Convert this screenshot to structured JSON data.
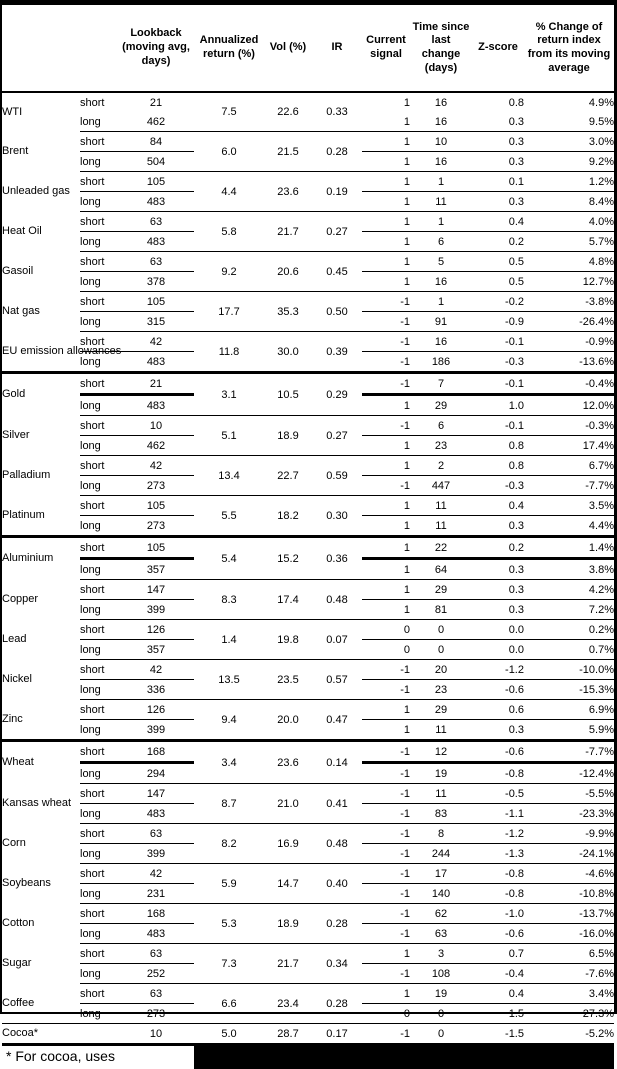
{
  "table": {
    "columns": [
      {
        "key": "name",
        "label": ""
      },
      {
        "key": "side",
        "label": ""
      },
      {
        "key": "lookback",
        "label": "Lookback (moving avg, days)"
      },
      {
        "key": "ann",
        "label": "Annualized return (%)"
      },
      {
        "key": "vol",
        "label": "Vol (%)"
      },
      {
        "key": "ir",
        "label": "IR"
      },
      {
        "key": "signal",
        "label": "Current signal"
      },
      {
        "key": "time",
        "label": "Time since last change (days)"
      },
      {
        "key": "z",
        "label": "Z-score"
      },
      {
        "key": "pct",
        "label": "% Change of return index from its moving average"
      }
    ],
    "groups": [
      {
        "name": "WTI",
        "annualized": "7.5",
        "vol": "22.6",
        "ir": "0.33",
        "rows": [
          {
            "side": "short",
            "lookback": "21",
            "signal": "1",
            "time": "16",
            "z": "0.8",
            "pct": "4.9%"
          },
          {
            "side": "long",
            "lookback": "462",
            "signal": "1",
            "time": "16",
            "z": "0.3",
            "pct": "9.5%"
          }
        ]
      },
      {
        "name": "Brent",
        "annualized": "6.0",
        "vol": "21.5",
        "ir": "0.28",
        "rows": [
          {
            "side": "short",
            "lookback": "84",
            "signal": "1",
            "time": "10",
            "z": "0.3",
            "pct": "3.0%"
          },
          {
            "side": "long",
            "lookback": "504",
            "signal": "1",
            "time": "16",
            "z": "0.3",
            "pct": "9.2%"
          }
        ]
      },
      {
        "name": "Unleaded gas",
        "annualized": "4.4",
        "vol": "23.6",
        "ir": "0.19",
        "rows": [
          {
            "side": "short",
            "lookback": "105",
            "signal": "1",
            "time": "1",
            "z": "0.1",
            "pct": "1.2%"
          },
          {
            "side": "long",
            "lookback": "483",
            "signal": "1",
            "time": "11",
            "z": "0.3",
            "pct": "8.4%"
          }
        ]
      },
      {
        "name": "Heat Oil",
        "annualized": "5.8",
        "vol": "21.7",
        "ir": "0.27",
        "rows": [
          {
            "side": "short",
            "lookback": "63",
            "signal": "1",
            "time": "1",
            "z": "0.4",
            "pct": "4.0%"
          },
          {
            "side": "long",
            "lookback": "483",
            "signal": "1",
            "time": "6",
            "z": "0.2",
            "pct": "5.7%"
          }
        ]
      },
      {
        "name": "Gasoil",
        "annualized": "9.2",
        "vol": "20.6",
        "ir": "0.45",
        "rows": [
          {
            "side": "short",
            "lookback": "63",
            "signal": "1",
            "time": "5",
            "z": "0.5",
            "pct": "4.8%"
          },
          {
            "side": "long",
            "lookback": "378",
            "signal": "1",
            "time": "16",
            "z": "0.5",
            "pct": "12.7%"
          }
        ]
      },
      {
        "name": "Nat gas",
        "annualized": "17.7",
        "vol": "35.3",
        "ir": "0.50",
        "rows": [
          {
            "side": "short",
            "lookback": "105",
            "signal": "-1",
            "time": "1",
            "z": "-0.2",
            "pct": "-3.8%"
          },
          {
            "side": "long",
            "lookback": "315",
            "signal": "-1",
            "time": "91",
            "z": "-0.9",
            "pct": "-26.4%"
          }
        ]
      },
      {
        "name": "EU emission allowances",
        "annualized": "11.8",
        "vol": "30.0",
        "ir": "0.39",
        "rows": [
          {
            "side": "short",
            "lookback": "42",
            "signal": "-1",
            "time": "16",
            "z": "-0.1",
            "pct": "-0.9%"
          },
          {
            "side": "long",
            "lookback": "483",
            "signal": "-1",
            "time": "186",
            "z": "-0.3",
            "pct": "-13.6%"
          }
        ]
      },
      {
        "name": "Gold",
        "section_start": true,
        "annualized": "3.1",
        "vol": "10.5",
        "ir": "0.29",
        "rows": [
          {
            "side": "short",
            "lookback": "21",
            "signal": "-1",
            "time": "7",
            "z": "-0.1",
            "pct": "-0.4%"
          },
          {
            "side": "long",
            "lookback": "483",
            "signal": "1",
            "time": "29",
            "z": "1.0",
            "pct": "12.0%"
          }
        ]
      },
      {
        "name": "Silver",
        "annualized": "5.1",
        "vol": "18.9",
        "ir": "0.27",
        "rows": [
          {
            "side": "short",
            "lookback": "10",
            "signal": "-1",
            "time": "6",
            "z": "-0.1",
            "pct": "-0.3%"
          },
          {
            "side": "long",
            "lookback": "462",
            "signal": "1",
            "time": "23",
            "z": "0.8",
            "pct": "17.4%"
          }
        ]
      },
      {
        "name": "Palladium",
        "annualized": "13.4",
        "vol": "22.7",
        "ir": "0.59",
        "rows": [
          {
            "side": "short",
            "lookback": "42",
            "signal": "1",
            "time": "2",
            "z": "0.8",
            "pct": "6.7%"
          },
          {
            "side": "long",
            "lookback": "273",
            "signal": "-1",
            "time": "447",
            "z": "-0.3",
            "pct": "-7.7%"
          }
        ]
      },
      {
        "name": "Platinum",
        "annualized": "5.5",
        "vol": "18.2",
        "ir": "0.30",
        "rows": [
          {
            "side": "short",
            "lookback": "105",
            "signal": "1",
            "time": "11",
            "z": "0.4",
            "pct": "3.5%"
          },
          {
            "side": "long",
            "lookback": "273",
            "signal": "1",
            "time": "11",
            "z": "0.3",
            "pct": "4.4%"
          }
        ]
      },
      {
        "name": "Aluminium",
        "section_start": true,
        "annualized": "5.4",
        "vol": "15.2",
        "ir": "0.36",
        "rows": [
          {
            "side": "short",
            "lookback": "105",
            "signal": "1",
            "time": "22",
            "z": "0.2",
            "pct": "1.4%"
          },
          {
            "side": "long",
            "lookback": "357",
            "signal": "1",
            "time": "64",
            "z": "0.3",
            "pct": "3.8%"
          }
        ]
      },
      {
        "name": "Copper",
        "annualized": "8.3",
        "vol": "17.4",
        "ir": "0.48",
        "rows": [
          {
            "side": "short",
            "lookback": "147",
            "signal": "1",
            "time": "29",
            "z": "0.3",
            "pct": "4.2%"
          },
          {
            "side": "long",
            "lookback": "399",
            "signal": "1",
            "time": "81",
            "z": "0.3",
            "pct": "7.2%"
          }
        ]
      },
      {
        "name": "Lead",
        "annualized": "1.4",
        "vol": "19.8",
        "ir": "0.07",
        "rows": [
          {
            "side": "short",
            "lookback": "126",
            "signal": "0",
            "time": "0",
            "z": "0.0",
            "pct": "0.2%"
          },
          {
            "side": "long",
            "lookback": "357",
            "signal": "0",
            "time": "0",
            "z": "0.0",
            "pct": "0.7%"
          }
        ]
      },
      {
        "name": "Nickel",
        "annualized": "13.5",
        "vol": "23.5",
        "ir": "0.57",
        "rows": [
          {
            "side": "short",
            "lookback": "42",
            "signal": "-1",
            "time": "20",
            "z": "-1.2",
            "pct": "-10.0%"
          },
          {
            "side": "long",
            "lookback": "336",
            "signal": "-1",
            "time": "23",
            "z": "-0.6",
            "pct": "-15.3%"
          }
        ]
      },
      {
        "name": "Zinc",
        "annualized": "9.4",
        "vol": "20.0",
        "ir": "0.47",
        "rows": [
          {
            "side": "short",
            "lookback": "126",
            "signal": "1",
            "time": "29",
            "z": "0.6",
            "pct": "6.9%"
          },
          {
            "side": "long",
            "lookback": "399",
            "signal": "1",
            "time": "11",
            "z": "0.3",
            "pct": "5.9%"
          }
        ]
      },
      {
        "name": "Wheat",
        "section_start": true,
        "annualized": "3.4",
        "vol": "23.6",
        "ir": "0.14",
        "rows": [
          {
            "side": "short",
            "lookback": "168",
            "signal": "-1",
            "time": "12",
            "z": "-0.6",
            "pct": "-7.7%"
          },
          {
            "side": "long",
            "lookback": "294",
            "signal": "-1",
            "time": "19",
            "z": "-0.8",
            "pct": "-12.4%"
          }
        ]
      },
      {
        "name": "Kansas wheat",
        "annualized": "8.7",
        "vol": "21.0",
        "ir": "0.41",
        "rows": [
          {
            "side": "short",
            "lookback": "147",
            "signal": "-1",
            "time": "11",
            "z": "-0.5",
            "pct": "-5.5%"
          },
          {
            "side": "long",
            "lookback": "483",
            "signal": "-1",
            "time": "83",
            "z": "-1.1",
            "pct": "-23.3%"
          }
        ]
      },
      {
        "name": "Corn",
        "annualized": "8.2",
        "vol": "16.9",
        "ir": "0.48",
        "rows": [
          {
            "side": "short",
            "lookback": "63",
            "signal": "-1",
            "time": "8",
            "z": "-1.2",
            "pct": "-9.9%"
          },
          {
            "side": "long",
            "lookback": "399",
            "signal": "-1",
            "time": "244",
            "z": "-1.3",
            "pct": "-24.1%"
          }
        ]
      },
      {
        "name": "Soybeans",
        "annualized": "5.9",
        "vol": "14.7",
        "ir": "0.40",
        "rows": [
          {
            "side": "short",
            "lookback": "42",
            "signal": "-1",
            "time": "17",
            "z": "-0.8",
            "pct": "-4.6%"
          },
          {
            "side": "long",
            "lookback": "231",
            "signal": "-1",
            "time": "140",
            "z": "-0.8",
            "pct": "-10.8%"
          }
        ]
      },
      {
        "name": "Cotton",
        "annualized": "5.3",
        "vol": "18.9",
        "ir": "0.28",
        "rows": [
          {
            "side": "short",
            "lookback": "168",
            "signal": "-1",
            "time": "62",
            "z": "-1.0",
            "pct": "-13.7%"
          },
          {
            "side": "long",
            "lookback": "483",
            "signal": "-1",
            "time": "63",
            "z": "-0.6",
            "pct": "-16.0%"
          }
        ]
      },
      {
        "name": "Sugar",
        "annualized": "7.3",
        "vol": "21.7",
        "ir": "0.34",
        "rows": [
          {
            "side": "short",
            "lookback": "63",
            "signal": "1",
            "time": "3",
            "z": "0.7",
            "pct": "6.5%"
          },
          {
            "side": "long",
            "lookback": "252",
            "signal": "-1",
            "time": "108",
            "z": "-0.4",
            "pct": "-7.6%"
          }
        ]
      },
      {
        "name": "Coffee",
        "annualized": "6.6",
        "vol": "23.4",
        "ir": "0.28",
        "rows": [
          {
            "side": "short",
            "lookback": "63",
            "signal": "1",
            "time": "19",
            "z": "0.4",
            "pct": "3.4%"
          },
          {
            "side": "long",
            "lookback": "273",
            "signal": "0",
            "time": "0",
            "z": "1.5",
            "pct": "27.3%"
          }
        ]
      },
      {
        "name": "Cocoa*",
        "full_width_line": true,
        "annualized": "5.0",
        "vol": "28.7",
        "ir": "0.17",
        "rows": [
          {
            "side": "",
            "lookback": "10",
            "signal": "-1",
            "time": "0",
            "z": "-1.5",
            "pct": "-5.2%"
          }
        ]
      }
    ]
  },
  "footnote": {
    "visible_text": "* For cocoa, uses",
    "redacted_remainder": true
  },
  "colors": {
    "text": "#000000",
    "background": "#ffffff",
    "border": "#000000",
    "redaction": "#000000"
  }
}
